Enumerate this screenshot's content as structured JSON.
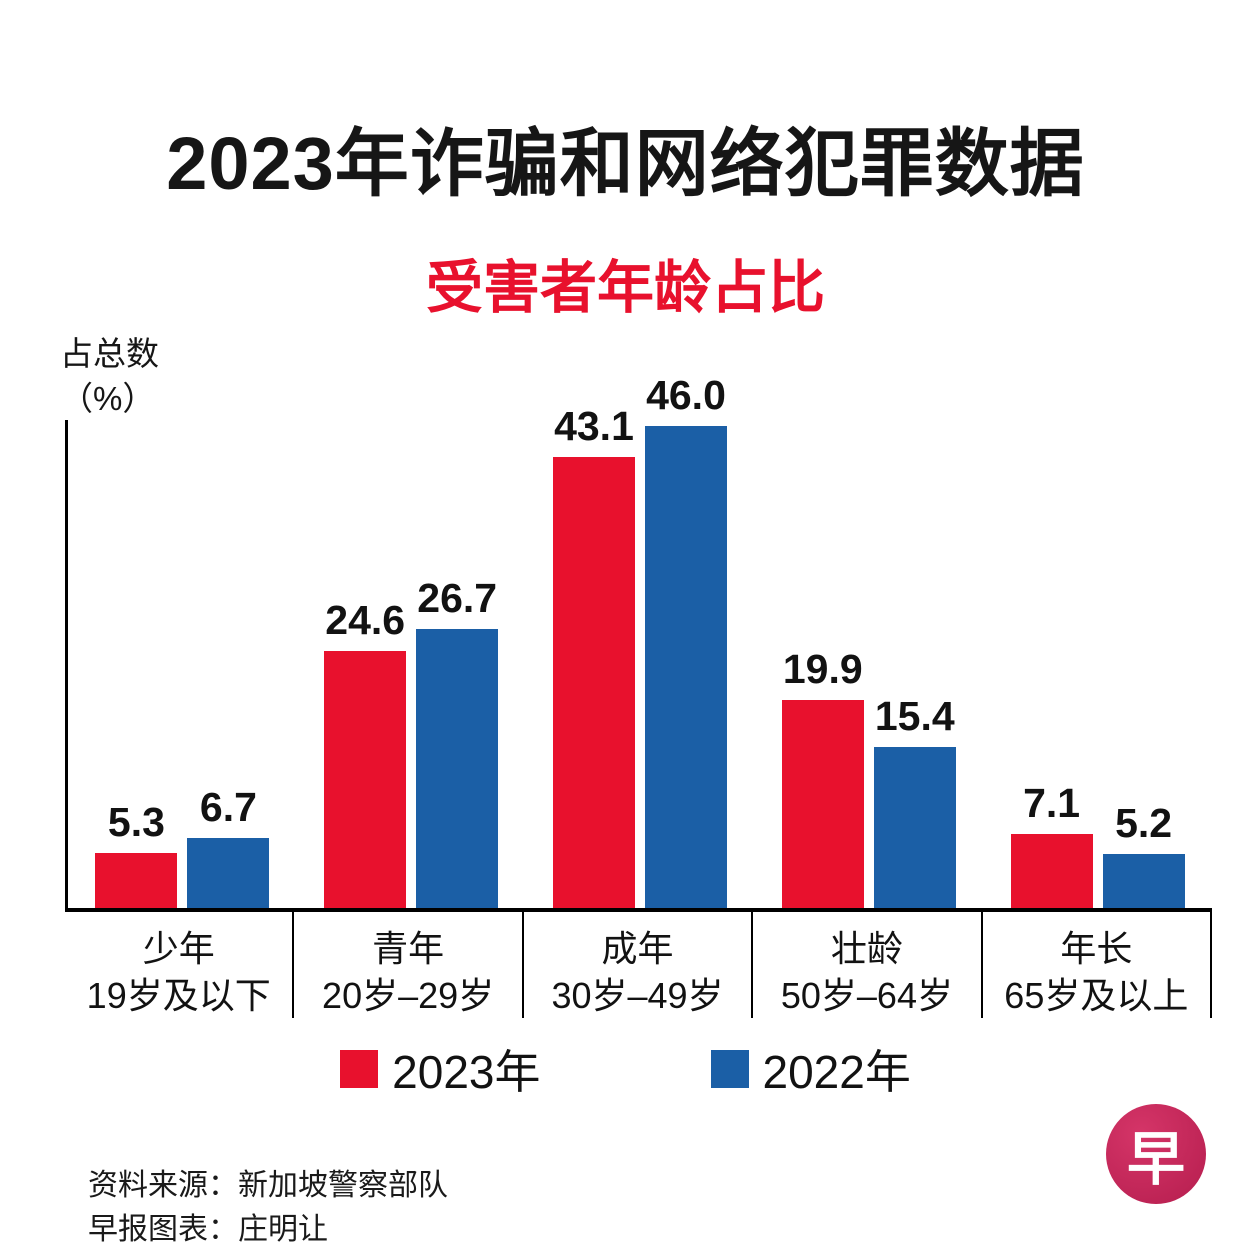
{
  "title": "2023年诈骗和网络犯罪数据",
  "subtitle": "受害者年龄占比",
  "y_axis": {
    "label_line1": "占总数",
    "label_line2": "（%）"
  },
  "chart_data": {
    "type": "bar",
    "title": "受害者年龄占比",
    "ylabel": "占总数（%）",
    "ylim": [
      0,
      47
    ],
    "grid": false,
    "legend_position": "bottom",
    "categories": [
      {
        "label": "少年",
        "sub": "19岁及以下"
      },
      {
        "label": "青年",
        "sub": "20岁–29岁"
      },
      {
        "label": "成年",
        "sub": "30岁–49岁"
      },
      {
        "label": "壮龄",
        "sub": "50岁–64岁"
      },
      {
        "label": "年长",
        "sub": "65岁及以上"
      }
    ],
    "series": [
      {
        "name": "2023年",
        "color": "#e8112d",
        "values": [
          5.3,
          24.6,
          43.1,
          19.9,
          7.1
        ],
        "value_labels": [
          "5.3",
          "24.6",
          "43.1",
          "19.9",
          "7.1"
        ]
      },
      {
        "name": "2022年",
        "color": "#1b5fa6",
        "values": [
          6.7,
          26.7,
          46.0,
          15.4,
          5.2
        ],
        "value_labels": [
          "6.7",
          "26.7",
          "46.0",
          "15.4",
          "5.2"
        ]
      }
    ]
  },
  "footer": {
    "source": "资料来源：新加坡警察部队",
    "credit": "早报图表：庄明让"
  },
  "logo": {
    "glyph": "早"
  },
  "colors": {
    "red": "#e8112d",
    "blue": "#1b5fa6",
    "logo": "#b51d4e"
  }
}
